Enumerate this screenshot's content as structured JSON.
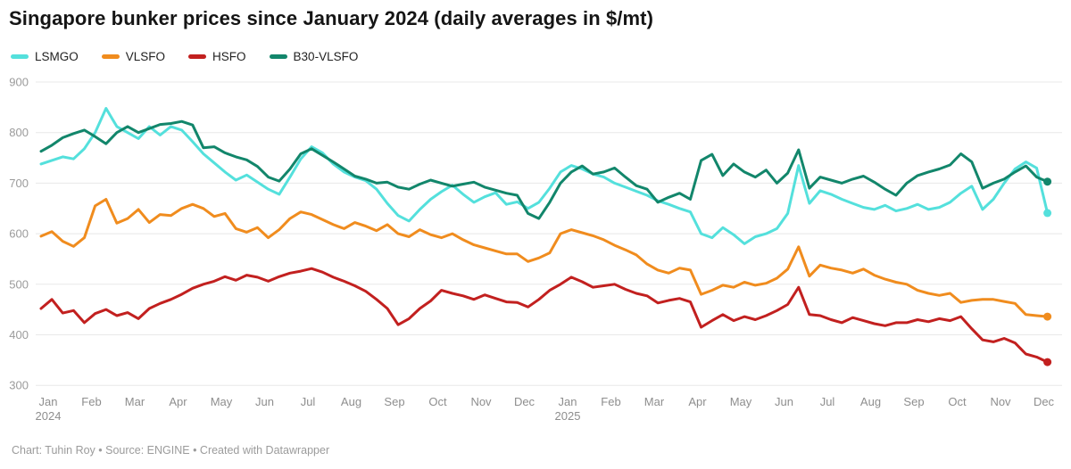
{
  "header": {
    "title": "Singapore bunker prices since January 2024 (daily averages in $/mt)"
  },
  "footer": {
    "text": "Chart: Tuhin Roy • Source: ENGINE • Created with Datawrapper"
  },
  "colors": {
    "lsmgo": "#54e0dc",
    "vlsfo": "#f08c1e",
    "hsfo": "#c2201f",
    "b30_vlsfo": "#12866b",
    "gridline": "#e8e8e8",
    "y_label": "#9b9b9b",
    "x_label": "#8e8e8e"
  },
  "chart_data": {
    "type": "line",
    "title": "Singapore bunker prices since January 2024 (daily averages in $/mt)",
    "xlabel": "",
    "ylabel": "$/mt",
    "ylim": [
      300,
      900
    ],
    "yticks": [
      300,
      400,
      500,
      600,
      700,
      800,
      900
    ],
    "grid": "horizontal",
    "legend_position": "top-left",
    "x_step_months": 0.25,
    "x_axis": {
      "months": [
        "Jan",
        "Feb",
        "Mar",
        "Apr",
        "May",
        "Jun",
        "Jul",
        "Aug",
        "Sep",
        "Oct",
        "Nov",
        "Dec",
        "Jan",
        "Feb",
        "Mar",
        "Apr",
        "May",
        "Jun",
        "Jul",
        "Aug",
        "Sep",
        "Oct",
        "Nov",
        "Dec"
      ],
      "years": [
        {
          "month_index": 0,
          "label": "2024"
        },
        {
          "month_index": 12,
          "label": "2025"
        }
      ]
    },
    "series": [
      {
        "name": "LSMGO",
        "color": "#54e0dc",
        "values": [
          738,
          745,
          752,
          748,
          768,
          800,
          848,
          812,
          800,
          788,
          812,
          795,
          812,
          805,
          782,
          758,
          740,
          722,
          706,
          716,
          702,
          688,
          678,
          712,
          748,
          772,
          760,
          738,
          722,
          712,
          705,
          688,
          660,
          636,
          625,
          648,
          668,
          683,
          696,
          678,
          662,
          673,
          681,
          658,
          663,
          650,
          662,
          690,
          722,
          735,
          728,
          718,
          712,
          700,
          692,
          684,
          676,
          665,
          658,
          650,
          643,
          600,
          592,
          612,
          598,
          580,
          594,
          600,
          610,
          640,
          735,
          660,
          685,
          678,
          668,
          660,
          652,
          648,
          656,
          645,
          650,
          658,
          648,
          652,
          662,
          680,
          694,
          648,
          668,
          700,
          728,
          742,
          730,
          641
        ]
      },
      {
        "name": "VLSFO",
        "color": "#f08c1e",
        "values": [
          595,
          604,
          585,
          575,
          592,
          655,
          668,
          621,
          630,
          648,
          622,
          638,
          636,
          650,
          658,
          650,
          634,
          640,
          610,
          603,
          612,
          592,
          608,
          630,
          643,
          638,
          628,
          618,
          610,
          622,
          615,
          606,
          618,
          600,
          594,
          608,
          598,
          592,
          600,
          588,
          578,
          572,
          566,
          560,
          560,
          545,
          552,
          562,
          600,
          608,
          602,
          596,
          588,
          577,
          568,
          558,
          540,
          528,
          522,
          532,
          528,
          480,
          488,
          498,
          494,
          504,
          498,
          502,
          512,
          530,
          574,
          516,
          538,
          532,
          528,
          522,
          530,
          518,
          510,
          504,
          500,
          488,
          482,
          478,
          482,
          464,
          468,
          470,
          470,
          466,
          462,
          440,
          438,
          436
        ]
      },
      {
        "name": "HSFO",
        "color": "#c2201f",
        "values": [
          452,
          470,
          443,
          448,
          424,
          442,
          450,
          438,
          444,
          432,
          452,
          462,
          470,
          480,
          492,
          500,
          506,
          515,
          508,
          518,
          514,
          506,
          515,
          522,
          526,
          531,
          524,
          514,
          506,
          497,
          486,
          470,
          452,
          420,
          432,
          452,
          467,
          488,
          482,
          477,
          470,
          479,
          472,
          465,
          464,
          455,
          470,
          488,
          500,
          514,
          505,
          494,
          497,
          500,
          490,
          482,
          477,
          463,
          468,
          472,
          465,
          415,
          428,
          440,
          428,
          436,
          430,
          438,
          448,
          460,
          494,
          440,
          438,
          430,
          424,
          434,
          428,
          422,
          418,
          424,
          424,
          430,
          426,
          432,
          428,
          436,
          412,
          390,
          386,
          393,
          384,
          362,
          356,
          346
        ]
      },
      {
        "name": "B30-VLSFO",
        "color": "#12866b",
        "values": [
          763,
          775,
          790,
          798,
          805,
          792,
          778,
          800,
          812,
          800,
          808,
          816,
          818,
          822,
          815,
          770,
          772,
          760,
          752,
          746,
          733,
          712,
          704,
          728,
          758,
          768,
          755,
          742,
          728,
          714,
          708,
          700,
          702,
          692,
          688,
          698,
          706,
          700,
          694,
          698,
          702,
          692,
          686,
          680,
          676,
          640,
          630,
          662,
          700,
          722,
          734,
          718,
          722,
          730,
          712,
          695,
          688,
          662,
          672,
          680,
          668,
          745,
          757,
          715,
          738,
          722,
          712,
          726,
          700,
          720,
          766,
          690,
          712,
          706,
          700,
          708,
          714,
          702,
          688,
          676,
          700,
          715,
          722,
          728,
          736,
          758,
          742,
          690,
          700,
          708,
          722,
          734,
          712,
          703
        ]
      }
    ]
  }
}
